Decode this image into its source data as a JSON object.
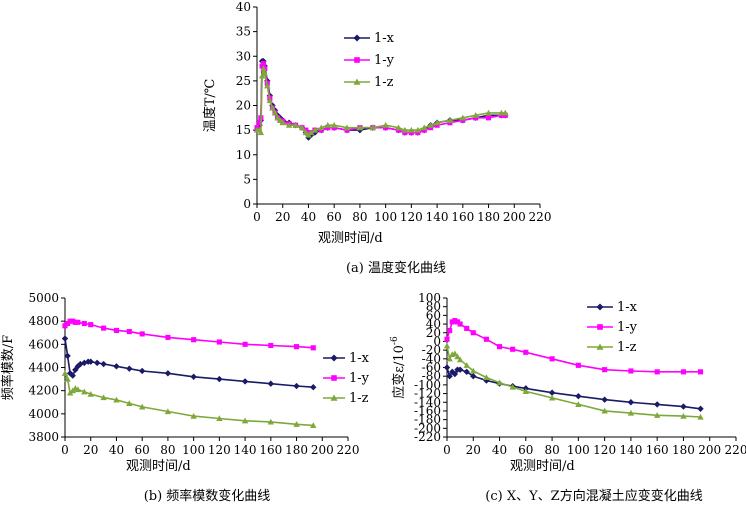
{
  "colors": {
    "1-x": "#1a1a66",
    "1-y": "#ff00ff",
    "1-z": "#7fa83a"
  },
  "chart_data": [
    {
      "id": "a",
      "type": "line",
      "caption": "(a) 温度变化曲线",
      "xlabel": "观测时间/d",
      "ylabel": "温度T/℃",
      "xlim": [
        0,
        220
      ],
      "ylim": [
        0,
        40
      ],
      "xticks": [
        0,
        20,
        40,
        60,
        80,
        100,
        120,
        140,
        160,
        180,
        200,
        220
      ],
      "yticks": [
        0,
        5,
        10,
        15,
        20,
        25,
        30,
        35,
        40
      ],
      "legend_position": "top-center",
      "series": [
        {
          "name": "1-x",
          "marker": "diamond",
          "x": [
            0,
            2,
            3,
            4,
            5,
            6,
            8,
            10,
            12,
            14,
            16,
            18,
            20,
            25,
            30,
            35,
            38,
            40,
            42,
            45,
            50,
            55,
            60,
            70,
            80,
            90,
            100,
            110,
            115,
            120,
            125,
            130,
            135,
            140,
            150,
            160,
            170,
            180,
            190,
            193
          ],
          "y": [
            15,
            16,
            17,
            29,
            29,
            28,
            25,
            22,
            20,
            19,
            18,
            17.5,
            17,
            16.5,
            16,
            15.5,
            14.5,
            13.5,
            14,
            14.5,
            15,
            15.5,
            15.5,
            15,
            15,
            15.5,
            15.5,
            15,
            14.5,
            14.5,
            14.5,
            15,
            16,
            16.5,
            17,
            17,
            17.5,
            18,
            18,
            18
          ]
        },
        {
          "name": "1-y",
          "marker": "square",
          "x": [
            0,
            2,
            3,
            4,
            5,
            6,
            8,
            10,
            12,
            14,
            16,
            18,
            20,
            25,
            30,
            35,
            38,
            40,
            42,
            45,
            50,
            55,
            60,
            70,
            80,
            90,
            100,
            110,
            115,
            120,
            125,
            130,
            135,
            140,
            150,
            160,
            170,
            180,
            190,
            193
          ],
          "y": [
            15.5,
            16.5,
            17.5,
            28,
            28.5,
            27.5,
            24.5,
            21.5,
            19.5,
            18.5,
            17.5,
            17,
            16.8,
            16.3,
            16,
            15.5,
            15,
            14.5,
            14.5,
            15,
            15,
            15.5,
            15.5,
            15,
            15.5,
            15.5,
            15.5,
            15,
            14.5,
            14.5,
            14.5,
            15,
            15.5,
            16,
            16.5,
            17,
            17.5,
            17.5,
            18,
            18
          ]
        },
        {
          "name": "1-z",
          "marker": "triangle",
          "x": [
            0,
            2,
            3,
            4,
            5,
            6,
            8,
            10,
            12,
            14,
            16,
            18,
            20,
            25,
            30,
            35,
            38,
            40,
            42,
            45,
            50,
            55,
            60,
            70,
            80,
            90,
            100,
            110,
            115,
            120,
            125,
            130,
            135,
            140,
            150,
            160,
            170,
            180,
            190,
            193
          ],
          "y": [
            15,
            15,
            14.5,
            26,
            27.5,
            26.5,
            24,
            21,
            19.5,
            18.5,
            17.5,
            17,
            16.5,
            16,
            16,
            15.5,
            14.5,
            14,
            14.5,
            15,
            15.5,
            16,
            16,
            15.5,
            15.5,
            15.5,
            16,
            15.5,
            15,
            15,
            15,
            15.5,
            16,
            16.5,
            17,
            17.5,
            18,
            18.5,
            18.5,
            18.5
          ]
        }
      ]
    },
    {
      "id": "b",
      "type": "line",
      "caption": "(b) 频率模数变化曲线",
      "xlabel": "观测时间/d",
      "ylabel": "频率模数/F",
      "xlim": [
        0,
        220
      ],
      "ylim": [
        3800,
        5000
      ],
      "xticks": [
        0,
        20,
        40,
        60,
        80,
        100,
        120,
        140,
        160,
        180,
        200,
        220
      ],
      "yticks": [
        3800,
        4000,
        4200,
        4400,
        4600,
        4800,
        5000
      ],
      "legend_position": "right",
      "series": [
        {
          "name": "1-x",
          "marker": "diamond",
          "x": [
            0,
            2,
            4,
            6,
            8,
            10,
            12,
            15,
            18,
            20,
            25,
            30,
            40,
            50,
            60,
            80,
            100,
            120,
            140,
            160,
            180,
            193
          ],
          "y": [
            4650,
            4500,
            4350,
            4330,
            4380,
            4410,
            4430,
            4440,
            4450,
            4450,
            4440,
            4430,
            4410,
            4390,
            4370,
            4350,
            4320,
            4300,
            4280,
            4260,
            4240,
            4230
          ]
        },
        {
          "name": "1-y",
          "marker": "square",
          "x": [
            0,
            2,
            4,
            6,
            8,
            10,
            15,
            20,
            30,
            40,
            50,
            60,
            80,
            100,
            120,
            140,
            160,
            180,
            193
          ],
          "y": [
            4760,
            4780,
            4800,
            4800,
            4790,
            4790,
            4780,
            4770,
            4740,
            4720,
            4710,
            4690,
            4660,
            4640,
            4620,
            4600,
            4590,
            4580,
            4570
          ]
        },
        {
          "name": "1-z",
          "marker": "triangle",
          "x": [
            0,
            2,
            4,
            6,
            8,
            10,
            15,
            20,
            30,
            40,
            50,
            60,
            80,
            100,
            120,
            140,
            160,
            180,
            193
          ],
          "y": [
            4350,
            4300,
            4180,
            4200,
            4220,
            4210,
            4190,
            4170,
            4140,
            4120,
            4090,
            4060,
            4020,
            3980,
            3960,
            3940,
            3930,
            3910,
            3900
          ]
        }
      ]
    },
    {
      "id": "c",
      "type": "line",
      "caption": "(c) X、Y、Z方向混凝土应变变化曲线",
      "xlabel": "观测时间/d",
      "ylabel": "应变ε/10",
      "ylabel_exponent": "-6",
      "xlim": [
        0,
        220
      ],
      "ylim": [
        -220,
        100
      ],
      "xticks": [
        0,
        20,
        40,
        60,
        80,
        100,
        120,
        140,
        160,
        180,
        200,
        220
      ],
      "yticks": [
        -220,
        -200,
        -180,
        -160,
        -140,
        -120,
        -100,
        -80,
        -60,
        -40,
        -20,
        0,
        20,
        40,
        60,
        80,
        100
      ],
      "legend_position": "top-left",
      "series": [
        {
          "name": "1-x",
          "marker": "diamond",
          "x": [
            0,
            2,
            4,
            6,
            8,
            10,
            15,
            20,
            30,
            40,
            50,
            60,
            80,
            100,
            120,
            140,
            160,
            180,
            193
          ],
          "y": [
            -60,
            -80,
            -70,
            -75,
            -65,
            -65,
            -70,
            -80,
            -90,
            -97,
            -103,
            -108,
            -118,
            -126,
            -134,
            -140,
            -145,
            -150,
            -155
          ]
        },
        {
          "name": "1-y",
          "marker": "square",
          "x": [
            0,
            2,
            4,
            6,
            8,
            10,
            15,
            20,
            30,
            40,
            50,
            60,
            80,
            100,
            120,
            140,
            160,
            180,
            193
          ],
          "y": [
            5,
            25,
            45,
            48,
            45,
            40,
            30,
            20,
            5,
            -12,
            -18,
            -25,
            -40,
            -55,
            -65,
            -68,
            -70,
            -70,
            -70
          ]
        },
        {
          "name": "1-z",
          "marker": "triangle",
          "x": [
            0,
            2,
            4,
            6,
            8,
            10,
            15,
            20,
            30,
            40,
            50,
            60,
            80,
            100,
            120,
            140,
            160,
            180,
            193
          ],
          "y": [
            -10,
            -40,
            -30,
            -28,
            -35,
            -42,
            -55,
            -68,
            -83,
            -95,
            -105,
            -115,
            -130,
            -145,
            -160,
            -165,
            -170,
            -172,
            -174
          ]
        }
      ]
    }
  ]
}
